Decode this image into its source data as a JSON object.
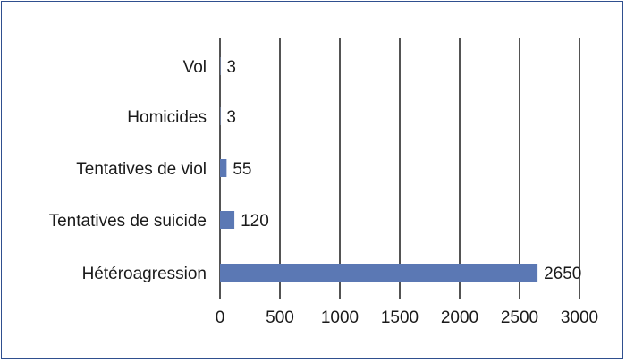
{
  "chart_data": {
    "type": "bar",
    "orientation": "horizontal",
    "categories": [
      "Vol",
      "Homicides",
      "Tentatives de viol",
      "Tentatives de suicide",
      "Hétéroagression"
    ],
    "values": [
      3,
      3,
      55,
      120,
      2650
    ],
    "value_labels": [
      "3",
      "3",
      "55",
      "120",
      "2650"
    ],
    "xlim": [
      0,
      3000
    ],
    "ticks": [
      0,
      500,
      1000,
      1500,
      2000,
      2500,
      3000
    ],
    "tick_labels": [
      "0",
      "500",
      "1000",
      "1500",
      "2000",
      "2500",
      "3000"
    ],
    "grid": "vertical lines",
    "legend": "none",
    "title": "",
    "xlabel": "",
    "ylabel": "",
    "bar_color": "#5b78b4",
    "frame_color": "#2f4f8f"
  }
}
